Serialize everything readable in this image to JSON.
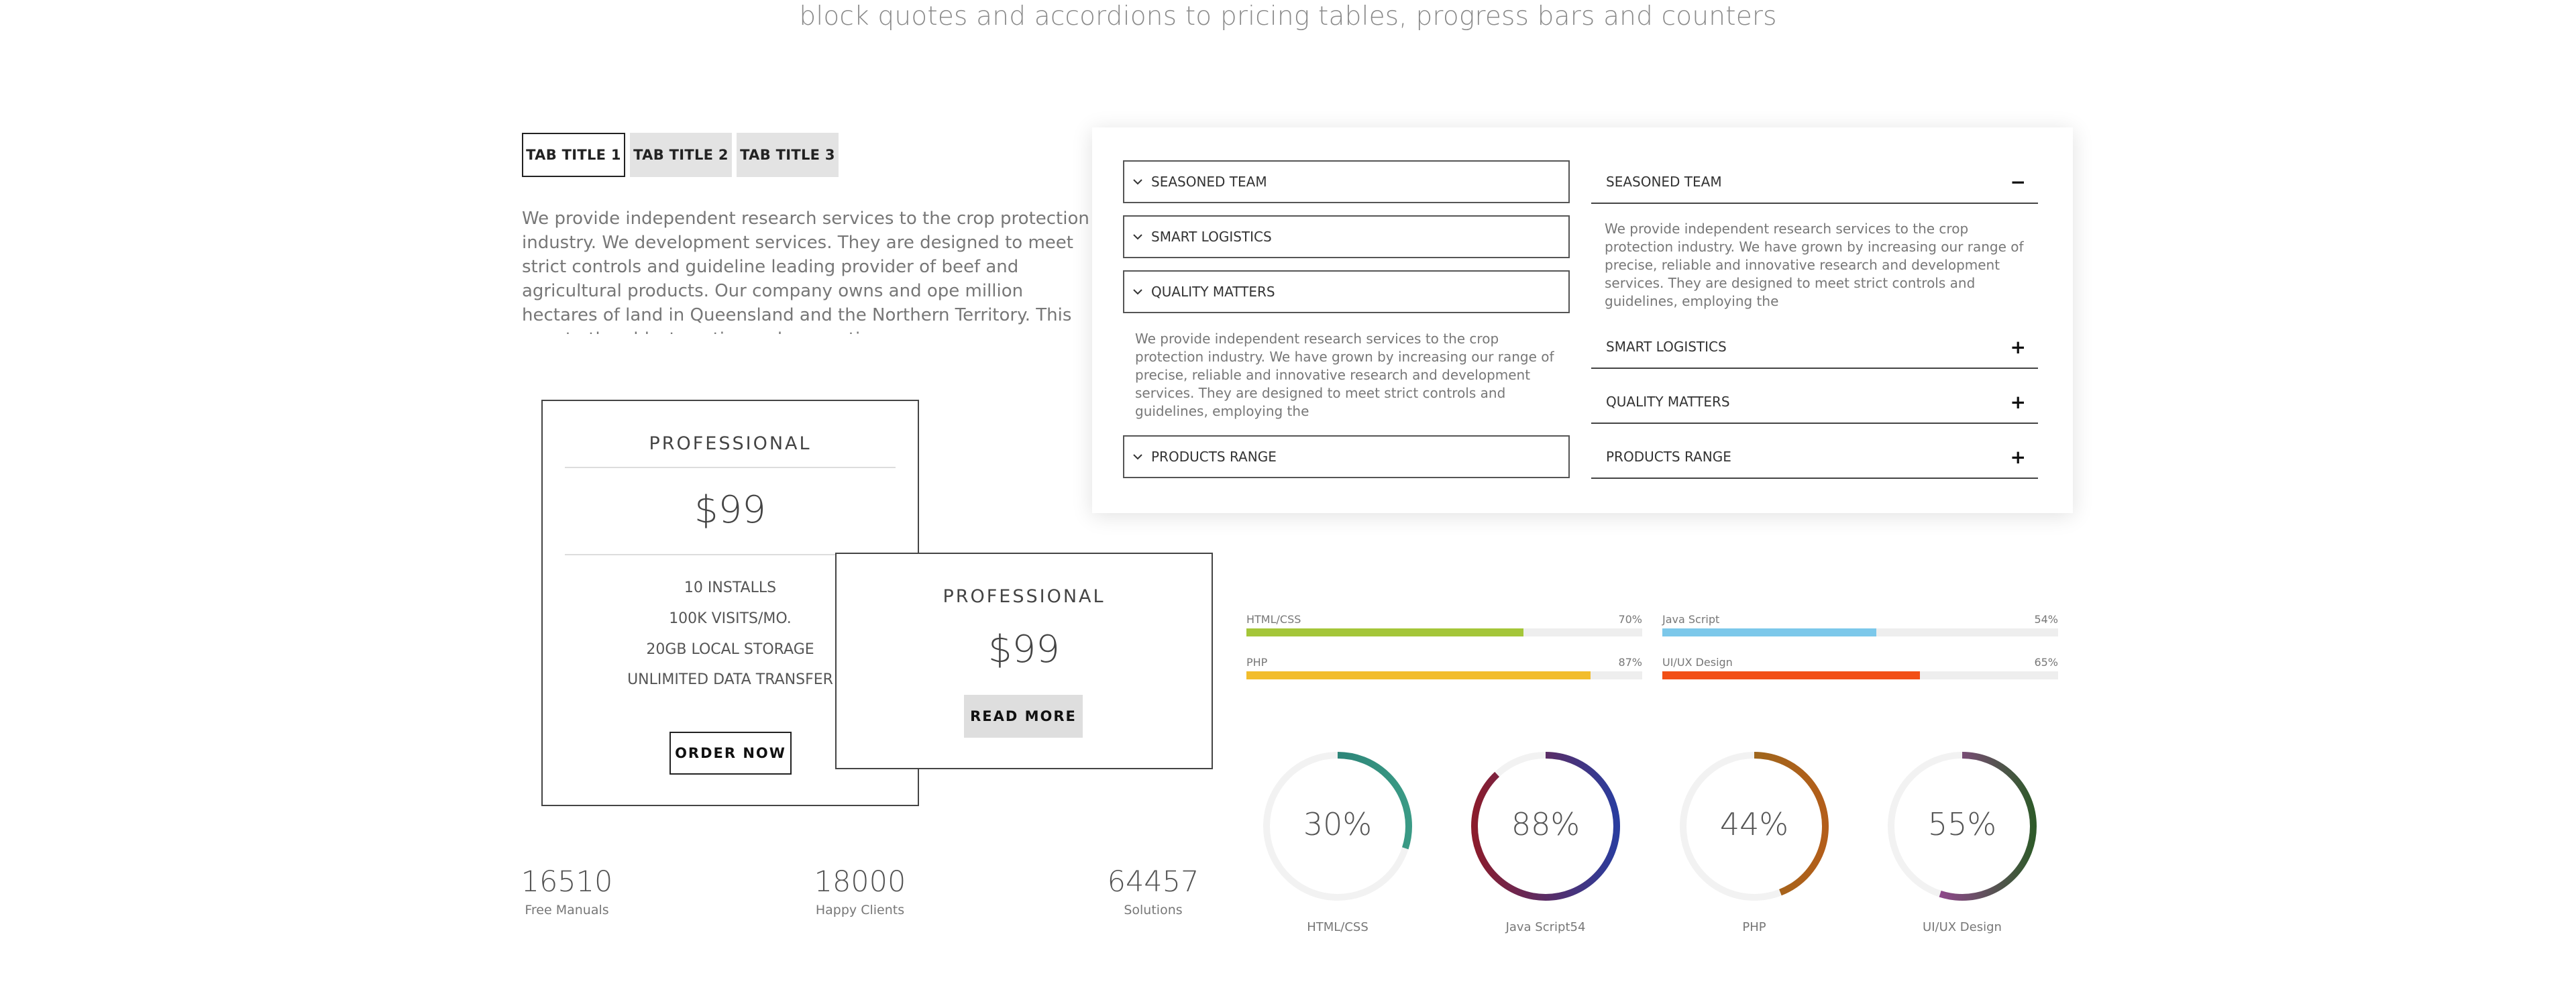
{
  "header": {
    "subtitle": "block quotes and accordions to pricing tables, progress bars and counters"
  },
  "tabs": {
    "items": [
      {
        "label": "TAB TITLE 1",
        "active": true
      },
      {
        "label": "TAB TITLE 2",
        "active": false
      },
      {
        "label": "TAB TITLE 3",
        "active": false
      }
    ],
    "content": "We provide independent research services to the crop protection industry. We development services. They are designed to meet strict controls and guideline leading provider of beef and agricultural products. Our company owns and ope million hectares of land in Queensland and the Northern Territory. This equate the oldest continuously operating company."
  },
  "accordion_left": {
    "items": [
      {
        "label": "SEASONED TEAM"
      },
      {
        "label": "SMART LOGISTICS"
      },
      {
        "label": "QUALITY MATTERS",
        "open": true
      },
      {
        "label": "PRODUCTS RANGE"
      }
    ],
    "open_text": "We provide independent research services to the crop protection industry. We have grown by increasing our range of precise, reliable and innovative research and development services. They are designed to meet strict controls and guidelines, employing the"
  },
  "accordion_right": {
    "items": [
      {
        "label": "SEASONED TEAM",
        "sign": "−"
      },
      {
        "label": "SMART LOGISTICS",
        "sign": "+"
      },
      {
        "label": "QUALITY MATTERS",
        "sign": "+"
      },
      {
        "label": "PRODUCTS RANGE",
        "sign": "+"
      }
    ],
    "open_text": "We provide independent research services to the crop protection industry. We have grown by increasing our range of precise, reliable and innovative research and development services. They are designed to meet strict controls and guidelines, employing the"
  },
  "pricing": {
    "card1": {
      "title": "PROFESSIONAL",
      "price": "$99",
      "features": [
        "10 INSTALLS",
        "100K VISITS/MO.",
        "20GB LOCAL STORAGE",
        "UNLIMITED DATA TRANSFER"
      ],
      "button": "ORDER NOW"
    },
    "card2": {
      "title": "PROFESSIONAL",
      "price": "$99",
      "button": "READ MORE"
    }
  },
  "progress": [
    {
      "label": "HTML/CSS",
      "value": 70,
      "display": "70%",
      "color": "#a4c639"
    },
    {
      "label": "Java Script",
      "value": 54,
      "display": "54%",
      "color": "#7cc8ea"
    },
    {
      "label": "PHP",
      "value": 87,
      "display": "87%",
      "color": "#f2bd2c"
    },
    {
      "label": "UI/UX Design",
      "value": 65,
      "display": "65%",
      "color": "#f24f16"
    }
  ],
  "counters": [
    {
      "value": "16510",
      "label": "Free Manuals"
    },
    {
      "value": "18000",
      "label": "Happy Clients"
    },
    {
      "value": "64457",
      "label": "Solutions"
    }
  ],
  "circles": [
    {
      "display": "30%",
      "value": 30,
      "label": "HTML/CSS",
      "color_start": "#1f6f6b",
      "color_end": "#3a9a85"
    },
    {
      "display": "88%",
      "value": 88,
      "label": "Java Script54",
      "color_start": "#8b1c2c",
      "color_end": "#2a3d9e"
    },
    {
      "display": "44%",
      "value": 44,
      "label": "PHP",
      "color_start": "#8a6d1e",
      "color_end": "#b35e1a"
    },
    {
      "display": "55%",
      "value": 55,
      "label": "UI/UX Design",
      "color_start": "#c23fbf",
      "color_end": "#2f5a2a"
    }
  ]
}
